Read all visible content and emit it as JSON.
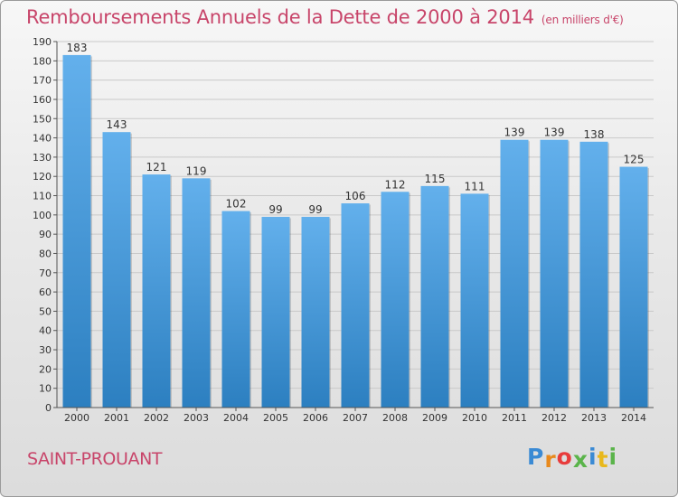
{
  "header": {
    "title": "Remboursements Annuels de la Dette de 2000 à 2014",
    "unit": "(en milliers d'€)"
  },
  "footer": {
    "commune": "SAINT-PROUANT",
    "logo": [
      "P",
      "r",
      "o",
      "x",
      "i",
      "t",
      "i"
    ]
  },
  "colors": {
    "title": "#c8456a",
    "bar_top": "#63b0ec",
    "bar_bottom": "#2c7fc0",
    "logo": [
      "#3a8ad4",
      "#e8891c",
      "#e83c3c",
      "#5ab44a",
      "#3a8ad4",
      "#e8b81c",
      "#5ab44a"
    ]
  },
  "chart_data": {
    "type": "bar",
    "title": "Remboursements Annuels de la Dette de 2000 à 2014",
    "xlabel": "",
    "ylabel": "",
    "categories": [
      "2000",
      "2001",
      "2002",
      "2003",
      "2004",
      "2005",
      "2006",
      "2007",
      "2008",
      "2009",
      "2010",
      "2011",
      "2012",
      "2013",
      "2014"
    ],
    "values": [
      183,
      143,
      121,
      119,
      102,
      99,
      99,
      106,
      112,
      115,
      111,
      139,
      139,
      138,
      125
    ],
    "ylim": [
      0,
      190
    ],
    "yticks": [
      0,
      10,
      20,
      30,
      40,
      50,
      60,
      70,
      80,
      90,
      100,
      110,
      120,
      130,
      140,
      150,
      160,
      170,
      180,
      190
    ],
    "grid": true
  }
}
